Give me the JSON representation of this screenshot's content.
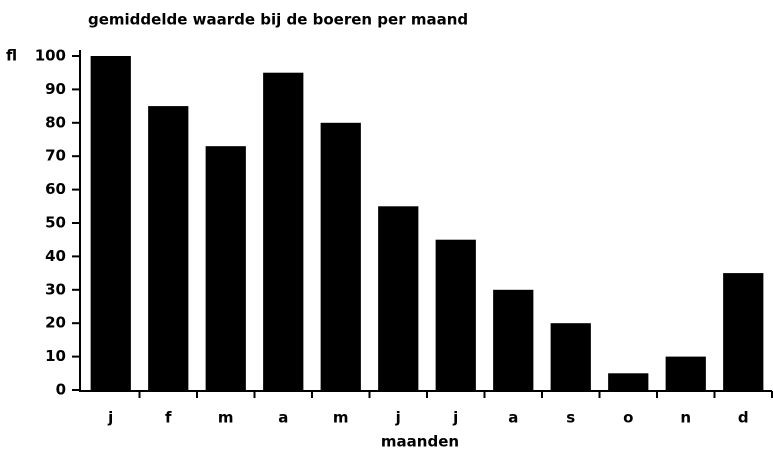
{
  "chart_data": {
    "type": "bar",
    "title": "gemiddelde waarde bij de boeren per maand",
    "y_label": "fl",
    "x_label": "maanden",
    "categories": [
      "j",
      "f",
      "m",
      "a",
      "m",
      "j",
      "j",
      "a",
      "s",
      "o",
      "n",
      "d"
    ],
    "values": [
      100,
      85,
      73,
      95,
      80,
      55,
      45,
      30,
      20,
      5,
      10,
      35
    ],
    "color": "#000000",
    "ylim": [
      0,
      100
    ],
    "yticks": [
      0,
      10,
      20,
      30,
      40,
      50,
      60,
      70,
      80,
      90,
      100
    ],
    "grid": false
  }
}
